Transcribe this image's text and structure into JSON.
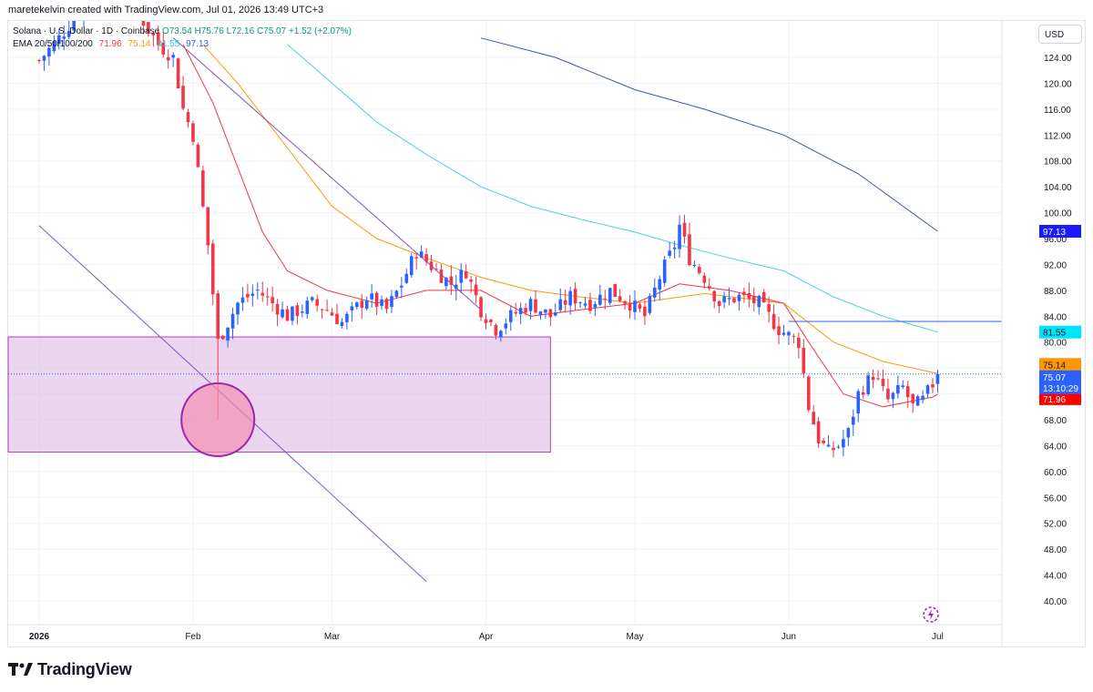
{
  "credit": "maretekelvin created with TradingView.com, Jul 01, 2026 13:49 UTC+3",
  "legend": {
    "symbol": "Solana · U.S. Dollar · 1D · Coinbase",
    "ohlc": "O73.54 H75.76 L72.16 C75.07 +1.52 (+2.07%)",
    "ema_label": "EMA 20/50/100/200",
    "ema_values": [
      "71.96",
      "75.14",
      "81.55",
      "97.13"
    ]
  },
  "currency_button": "USD",
  "brand": "TradingView",
  "colors": {
    "up": "#2962ff",
    "down": "#f23645",
    "ema20": "#f23645",
    "ema50": "#ff9800",
    "ema100": "#4dd0e1",
    "ema200": "#3f51b5",
    "zone_fill": "#e1bee7",
    "zone_stroke": "#ab47bc",
    "trend": "#7e57c2"
  },
  "chart_data": {
    "type": "candlestick",
    "y_axis": {
      "min": 40,
      "max": 127,
      "ticks": [
        "124.00",
        "120.00",
        "116.00",
        "112.00",
        "108.00",
        "104.00",
        "100.00",
        "96.00",
        "92.00",
        "88.00",
        "84.00",
        "80.00",
        "76.00",
        "72.00",
        "68.00",
        "64.00",
        "60.00",
        "56.00",
        "52.00",
        "48.00",
        "44.00",
        "40.00"
      ]
    },
    "x_axis": {
      "labels": [
        "2026",
        "Feb",
        "Mar",
        "Apr",
        "May",
        "Jun",
        "Jul"
      ]
    },
    "price_labels": [
      {
        "name": "EMA 200",
        "value": "97.13",
        "color": "#2962ff"
      },
      {
        "name": "EMA 100",
        "value": "81.55",
        "color": "#26c6da"
      },
      {
        "name": "EMA 50",
        "value": "75.14",
        "color": "#ff9800"
      },
      {
        "name": "Last price",
        "value": "75.07",
        "countdown": "13:10:29",
        "color": "#2962ff"
      },
      {
        "name": "EMA 20",
        "value": "71.96",
        "color": "#f23645"
      }
    ],
    "horizontal_line": 83.2,
    "zone": {
      "from": "2026-01-01",
      "to": "2026-04-14",
      "top": 80.8,
      "bottom": 63.0
    },
    "circle": {
      "date": "2026-02-06",
      "price": 68.0,
      "note": "circled wick low"
    },
    "close_path": [
      [
        "2026-01-01",
        123.5
      ],
      [
        "2026-01-05",
        127
      ],
      [
        "2026-01-10",
        132
      ],
      [
        "2026-01-20",
        132
      ],
      [
        "2026-01-25",
        126
      ],
      [
        "2026-01-28",
        124
      ],
      [
        "2026-01-30",
        116
      ],
      [
        "2026-02-01",
        112
      ],
      [
        "2026-02-04",
        95
      ],
      [
        "2026-02-06",
        80
      ],
      [
        "2026-02-10",
        86
      ],
      [
        "2026-02-14",
        88
      ],
      [
        "2026-02-17",
        86
      ],
      [
        "2026-02-20",
        84
      ],
      [
        "2026-02-25",
        86
      ],
      [
        "2026-02-28",
        85
      ],
      [
        "2026-03-03",
        83
      ],
      [
        "2026-03-08",
        87
      ],
      [
        "2026-03-12",
        85
      ],
      [
        "2026-03-15",
        89
      ],
      [
        "2026-03-18",
        94
      ],
      [
        "2026-03-22",
        91
      ],
      [
        "2026-03-25",
        89
      ],
      [
        "2026-03-28",
        91
      ],
      [
        "2026-03-31",
        85
      ],
      [
        "2026-04-03",
        82
      ],
      [
        "2026-04-06",
        84
      ],
      [
        "2026-04-10",
        86
      ],
      [
        "2026-04-14",
        84
      ],
      [
        "2026-04-18",
        87
      ],
      [
        "2026-04-22",
        86
      ],
      [
        "2026-04-26",
        88
      ],
      [
        "2026-04-30",
        86
      ],
      [
        "2026-05-03",
        84
      ],
      [
        "2026-05-06",
        90
      ],
      [
        "2026-05-09",
        95
      ],
      [
        "2026-05-10",
        98
      ],
      [
        "2026-05-12",
        93
      ],
      [
        "2026-05-15",
        90
      ],
      [
        "2026-05-18",
        86
      ],
      [
        "2026-05-22",
        87
      ],
      [
        "2026-05-26",
        86
      ],
      [
        "2026-05-30",
        82
      ],
      [
        "2026-06-01",
        81
      ],
      [
        "2026-06-03",
        80
      ],
      [
        "2026-06-05",
        70
      ],
      [
        "2026-06-07",
        65
      ],
      [
        "2026-06-09",
        63
      ],
      [
        "2026-06-11",
        64
      ],
      [
        "2026-06-13",
        66
      ],
      [
        "2026-06-15",
        72
      ],
      [
        "2026-06-18",
        75
      ],
      [
        "2026-06-21",
        71
      ],
      [
        "2026-06-24",
        73
      ],
      [
        "2026-06-26",
        70
      ],
      [
        "2026-06-28",
        71
      ],
      [
        "2026-06-30",
        73.5
      ],
      [
        "2026-07-01",
        75.07
      ]
    ],
    "ema20_path": [
      [
        "2026-01-30",
        126
      ],
      [
        "2026-02-05",
        117
      ],
      [
        "2026-02-10",
        107
      ],
      [
        "2026-02-15",
        97
      ],
      [
        "2026-02-20",
        91
      ],
      [
        "2026-02-28",
        88
      ],
      [
        "2026-03-10",
        86
      ],
      [
        "2026-03-20",
        88
      ],
      [
        "2026-03-31",
        88
      ],
      [
        "2026-04-10",
        84
      ],
      [
        "2026-04-20",
        85
      ],
      [
        "2026-05-01",
        86
      ],
      [
        "2026-05-10",
        89
      ],
      [
        "2026-05-20",
        88
      ],
      [
        "2026-05-31",
        86
      ],
      [
        "2026-06-05",
        80
      ],
      [
        "2026-06-12",
        72
      ],
      [
        "2026-06-20",
        70
      ],
      [
        "2026-06-30",
        71.5
      ],
      [
        "2026-07-01",
        71.96
      ]
    ],
    "ema50_path": [
      [
        "2026-02-03",
        126
      ],
      [
        "2026-02-10",
        120
      ],
      [
        "2026-02-20",
        110
      ],
      [
        "2026-03-01",
        101
      ],
      [
        "2026-03-10",
        96
      ],
      [
        "2026-03-20",
        93
      ],
      [
        "2026-03-31",
        90
      ],
      [
        "2026-04-10",
        88
      ],
      [
        "2026-04-20",
        87
      ],
      [
        "2026-05-01",
        86
      ],
      [
        "2026-05-15",
        87.5
      ],
      [
        "2026-05-31",
        86
      ],
      [
        "2026-06-10",
        80
      ],
      [
        "2026-06-20",
        77
      ],
      [
        "2026-07-01",
        75.14
      ]
    ],
    "ema100_path": [
      [
        "2026-02-20",
        126
      ],
      [
        "2026-03-01",
        120
      ],
      [
        "2026-03-10",
        114
      ],
      [
        "2026-03-20",
        109
      ],
      [
        "2026-03-31",
        104
      ],
      [
        "2026-04-10",
        101
      ],
      [
        "2026-04-20",
        99
      ],
      [
        "2026-05-01",
        97
      ],
      [
        "2026-05-10",
        95
      ],
      [
        "2026-05-20",
        93
      ],
      [
        "2026-05-31",
        91
      ],
      [
        "2026-06-10",
        87
      ],
      [
        "2026-06-20",
        84
      ],
      [
        "2026-07-01",
        81.55
      ]
    ],
    "ema200_path": [
      [
        "2026-03-31",
        127
      ],
      [
        "2026-04-15",
        124
      ],
      [
        "2026-05-01",
        119
      ],
      [
        "2026-05-15",
        116
      ],
      [
        "2026-05-31",
        112
      ],
      [
        "2026-06-15",
        106
      ],
      [
        "2026-07-01",
        97.13
      ]
    ],
    "trendlines": [
      {
        "from": [
          "2026-01-01",
          98.0
        ],
        "to": [
          "2026-03-20",
          43.0
        ]
      },
      {
        "from": [
          "2026-01-28",
          127.0
        ],
        "to": [
          "2026-03-31",
          85.0
        ]
      }
    ]
  }
}
